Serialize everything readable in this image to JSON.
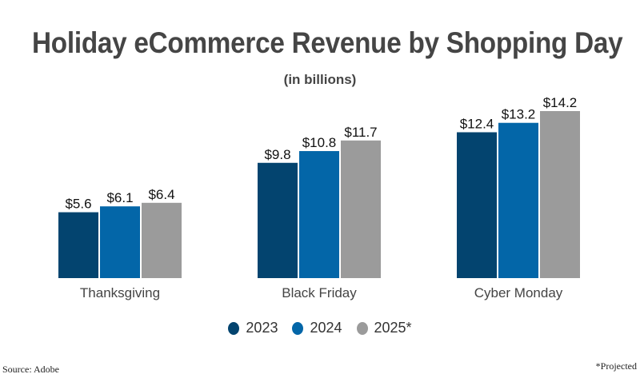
{
  "chart_data": {
    "type": "bar",
    "title": "Holiday eCommerce Revenue by Shopping Day",
    "subtitle": "(in billions)",
    "categories": [
      "Thanksgiving",
      "Black Friday",
      "Cyber Monday"
    ],
    "series": [
      {
        "name": "2023",
        "color": "#03446f",
        "values": [
          5.6,
          9.8,
          12.4
        ],
        "labels": [
          "$5.6",
          "$9.8",
          "$12.4"
        ]
      },
      {
        "name": "2024",
        "color": "#0366a8",
        "values": [
          6.1,
          10.8,
          13.2
        ],
        "labels": [
          "$6.1",
          "$10.8",
          "$13.2"
        ]
      },
      {
        "name": "2025*",
        "color": "#9b9b9b",
        "values": [
          6.4,
          11.7,
          14.2
        ],
        "labels": [
          "$6.4",
          "$11.7",
          "$14.2"
        ]
      }
    ],
    "xlabel": "",
    "ylabel": "",
    "ylim": [
      0,
      14.2
    ],
    "grid": false,
    "legend_position": "bottom-center"
  },
  "footer": {
    "source": "Source: Adobe",
    "note": "*Projected"
  }
}
